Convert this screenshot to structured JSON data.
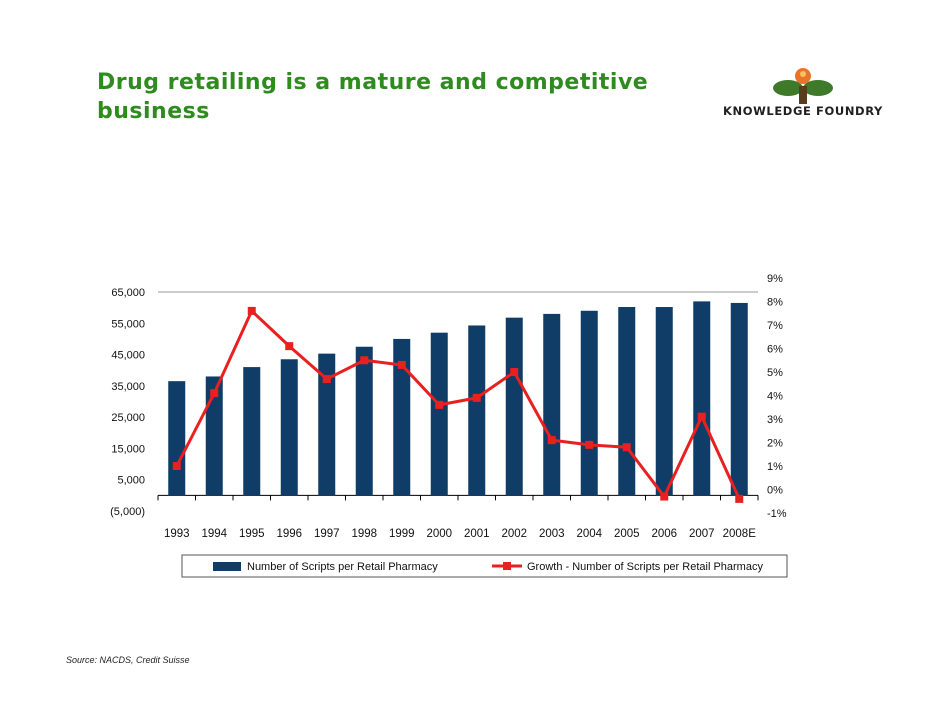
{
  "slide": {
    "title_line1": "Drug retailing is a mature and competitive",
    "title_line2": "business",
    "logo_text": "KNOWLEDGE FOUNDRY",
    "source": "Source: NACDS, Credit Suisse"
  },
  "colors": {
    "title": "#2e8b1e",
    "bars": "#0f3d67",
    "line": "#e8201f",
    "logo_leaf": "#3f7a2a",
    "logo_flame": "#e8742b"
  },
  "chart_data": {
    "type": "bar",
    "categories": [
      "1993",
      "1994",
      "1995",
      "1996",
      "1997",
      "1998",
      "1999",
      "2000",
      "2001",
      "2002",
      "2003",
      "2004",
      "2005",
      "2006",
      "2007",
      "2008E"
    ],
    "series": [
      {
        "name": "Number of Scripts per Retail Pharmacy",
        "type": "bar",
        "axis": "left",
        "values": [
          36500,
          38000,
          41000,
          43500,
          45300,
          47500,
          50000,
          52000,
          54300,
          56800,
          58000,
          59000,
          60200,
          60200,
          62000,
          61500
        ]
      },
      {
        "name": "Growth - Number of Scripts per Retail Pharmacy",
        "type": "line",
        "axis": "right",
        "values": [
          1.0,
          4.1,
          7.6,
          6.1,
          4.7,
          5.5,
          5.3,
          3.6,
          3.9,
          5.0,
          2.1,
          1.9,
          1.8,
          -0.3,
          3.1,
          -0.4
        ]
      }
    ],
    "y_left": {
      "min": -5000,
      "max": 65000,
      "ticks": [
        -5000,
        5000,
        15000,
        25000,
        35000,
        45000,
        55000,
        65000
      ],
      "tick_labels": [
        "(5,000)",
        "5,000",
        "15,000",
        "25,000",
        "35,000",
        "45,000",
        "55,000",
        "65,000"
      ]
    },
    "y_right": {
      "min": -1,
      "max": 9,
      "ticks": [
        -1,
        0,
        1,
        2,
        3,
        4,
        5,
        6,
        7,
        8,
        9
      ],
      "tick_labels": [
        "-1%",
        "0%",
        "1%",
        "2%",
        "3%",
        "4%",
        "5%",
        "6%",
        "7%",
        "8%",
        "9%"
      ]
    },
    "grid": "horizontal-top-only",
    "legend_position": "bottom"
  }
}
